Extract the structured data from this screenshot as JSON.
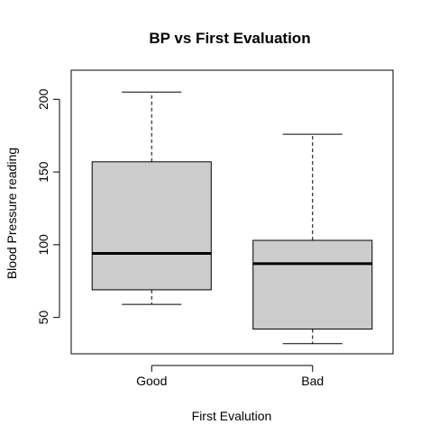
{
  "chart_data": {
    "type": "boxplot",
    "title": "BP vs First Evaluation",
    "xlabel": "First Evalution",
    "ylabel": "Blood Pressure reading",
    "categories": [
      "Good",
      "Bad"
    ],
    "ylim": [
      25,
      220
    ],
    "yticks": [
      50,
      100,
      150,
      200
    ],
    "grid": false,
    "box_color": "#cccccc",
    "boxes": [
      {
        "category": "Good",
        "whisker_low": 59,
        "q1": 69,
        "median": 94,
        "q3": 157,
        "whisker_high": 205
      },
      {
        "category": "Bad",
        "whisker_low": 32,
        "q1": 42,
        "median": 87,
        "q3": 103,
        "whisker_high": 176
      }
    ]
  }
}
